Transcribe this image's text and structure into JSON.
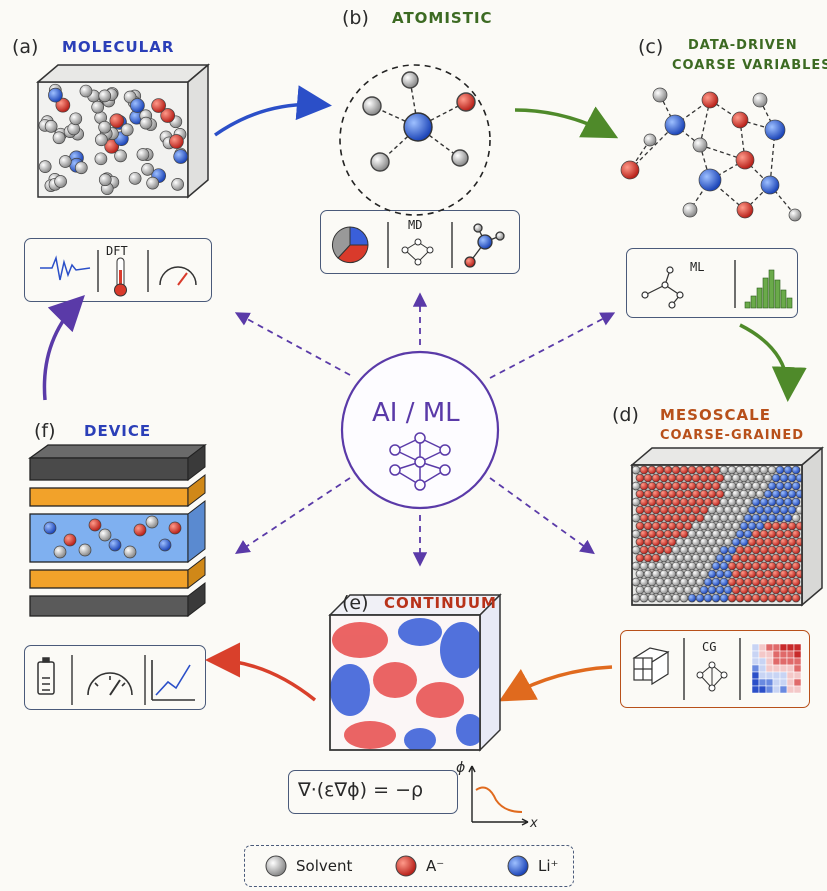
{
  "panels": {
    "a": {
      "letter": "(a)",
      "title": "MOLECULAR",
      "badge": "DFT",
      "color": "#2b3fb8"
    },
    "b": {
      "letter": "(b)",
      "title": "ATOMISTIC",
      "badge": "MD",
      "color": "#3c6a22"
    },
    "c": {
      "letter": "(c)",
      "title_line1": "DATA-DRIVEN",
      "title_line2": "COARSE VARIABLES",
      "badge": "ML",
      "color": "#3c6a22"
    },
    "d": {
      "letter": "(d)",
      "title_line1": "MESOSCALE",
      "title_line2": "COARSE-GRAINED",
      "badge": "CG",
      "color": "#b8501a"
    },
    "e": {
      "letter": "(e)",
      "title": "CONTINUUM",
      "equation": "∇·(ε∇ϕ) = −ρ",
      "plot_y": "ϕ",
      "plot_x": "x",
      "color": "#b8321a"
    },
    "f": {
      "letter": "(f)",
      "title": "DEVICE",
      "color": "#2b3fb8"
    }
  },
  "center": {
    "label": "AI / ML",
    "color": "#5a3aa8"
  },
  "legend": {
    "solvent": "Solvent",
    "anion": "A⁻",
    "lithium": "Li⁺"
  },
  "colors": {
    "blue": "#2b5fd9",
    "red": "#d93a2b",
    "grey": "#b8b8b8",
    "purple": "#5a3aa8",
    "green": "#4f8a2a",
    "orange": "#e06a1e"
  }
}
